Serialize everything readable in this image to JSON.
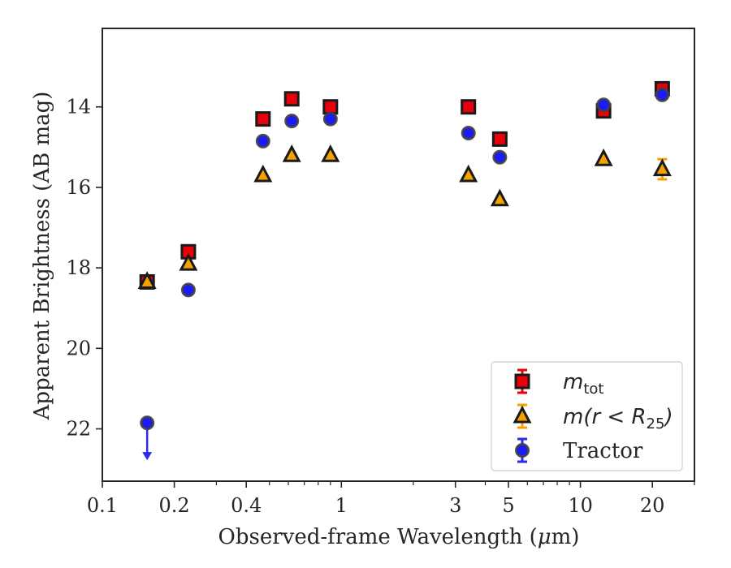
{
  "chart_data": {
    "type": "scatter",
    "xlabel_pre": "Observed-frame Wavelength (",
    "xlabel_mu": "μ",
    "xlabel_post": "m)",
    "ylabel": "Apparent Brightness (AB mag)",
    "x_scale": "log",
    "xlim": [
      0.1,
      30
    ],
    "ylim": [
      23.3,
      12.05
    ],
    "y_inverted": true,
    "x_ticks": [
      0.1,
      0.2,
      0.4,
      1,
      3,
      5,
      10,
      20
    ],
    "x_tick_labels": [
      "0.1",
      "0.2",
      "0.4",
      "1",
      "3",
      "5",
      "10",
      "20"
    ],
    "y_ticks": [
      14,
      16,
      18,
      20,
      22
    ],
    "y_tick_labels": [
      "14",
      "16",
      "18",
      "20",
      "22"
    ],
    "grid": false,
    "legend_position": "lower-right",
    "series": [
      {
        "name": "m_tot",
        "legend_label": {
          "m": "m",
          "sub": "tot"
        },
        "marker": "square",
        "color": "#e8000b",
        "edge": "#1a1a1a",
        "x": [
          0.154,
          0.229,
          0.47,
          0.62,
          0.9,
          3.4,
          4.6,
          12.5,
          22
        ],
        "y": [
          18.35,
          17.6,
          14.3,
          13.8,
          14.0,
          14.0,
          14.8,
          14.1,
          13.55
        ]
      },
      {
        "name": "m(r<R25)",
        "legend_label": {
          "pre": "m(r < R",
          "sub": "25",
          "post": ")"
        },
        "marker": "triangle",
        "color": "#f5a201",
        "edge": "#1a1a1a",
        "x": [
          0.154,
          0.229,
          0.47,
          0.62,
          0.9,
          3.4,
          4.6,
          12.5,
          22
        ],
        "y": [
          18.35,
          17.9,
          15.7,
          15.2,
          15.2,
          15.7,
          16.3,
          15.3,
          15.55
        ],
        "errors": [
          0,
          0,
          0,
          0,
          0,
          0,
          0,
          0,
          0.25
        ]
      },
      {
        "name": "Tractor",
        "legend_label": {
          "text": "Tractor"
        },
        "marker": "circle",
        "color": "#1a1aff",
        "edge": "#404040",
        "x": [
          0.154,
          0.229,
          0.47,
          0.62,
          0.9,
          3.4,
          4.6,
          12.5,
          22
        ],
        "y": [
          21.85,
          18.55,
          14.85,
          14.35,
          14.3,
          14.65,
          15.25,
          13.95,
          13.7
        ],
        "upper_limit": [
          true,
          false,
          false,
          false,
          false,
          false,
          false,
          false,
          false
        ]
      }
    ]
  }
}
